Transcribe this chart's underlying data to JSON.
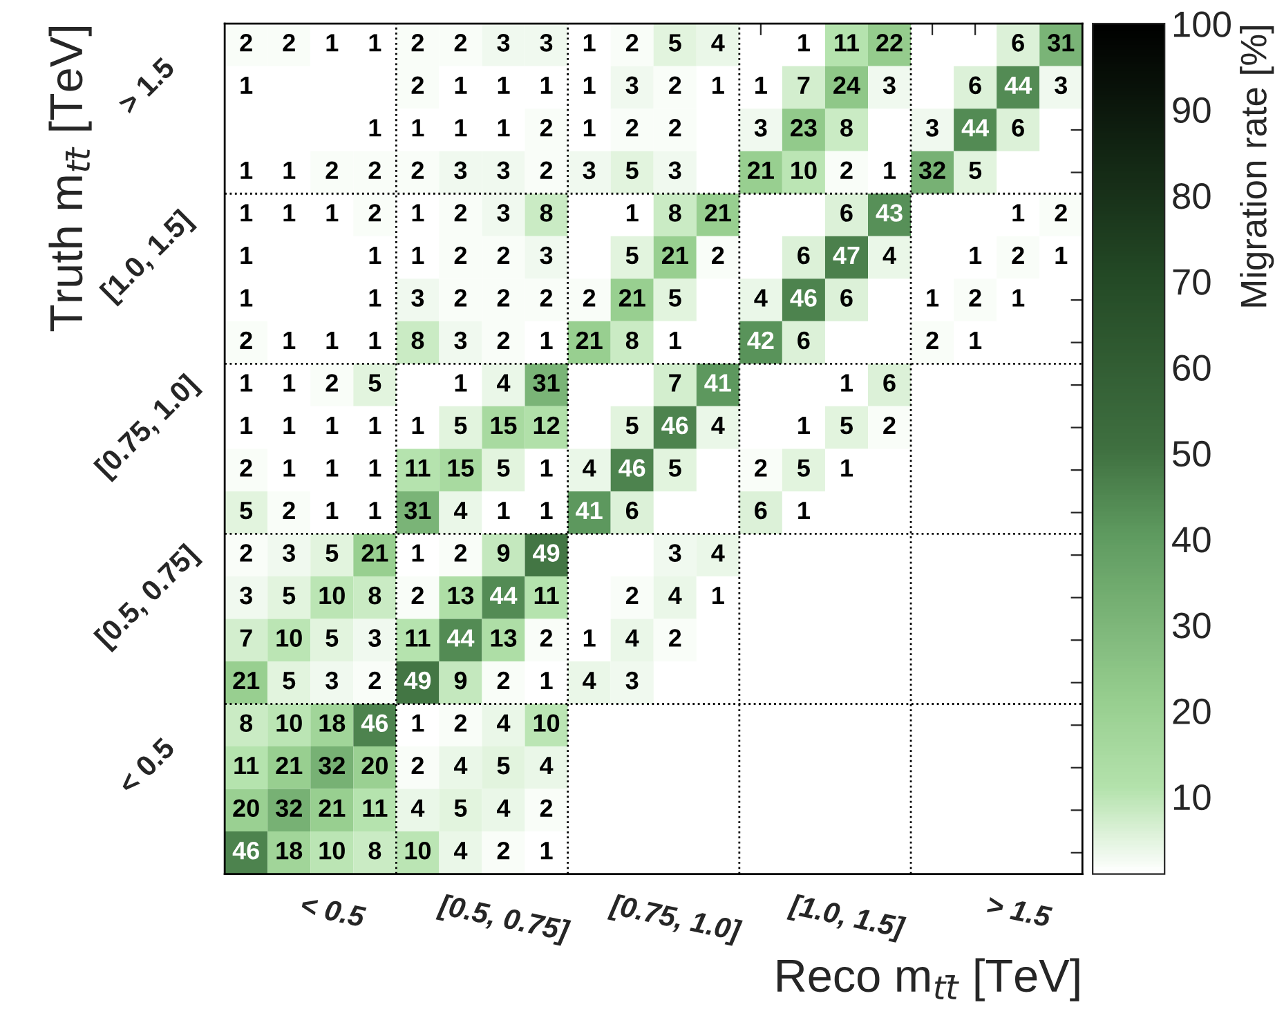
{
  "chart_data": {
    "type": "heatmap",
    "xlabel": "Reco m$_{tt̄}$ [TeV]",
    "ylabel": "Truth m$_{tt̄}$ [TeV]",
    "clabel": "Migration rate [%]",
    "categories": [
      null,
      null,
      "< 0.5",
      null,
      null,
      null,
      "[0.5, 0.75]",
      null,
      null,
      null,
      "[0.75, 1.0]",
      null,
      null,
      null,
      "[1.0, 1.5]",
      null,
      null,
      null,
      "> 1.5",
      null
    ],
    "y_categories": [
      null,
      "> 1.5",
      null,
      null,
      null,
      "[1.0, 1.5]",
      null,
      null,
      null,
      "[0.75, 1.0]",
      null,
      null,
      null,
      "[0.5, 0.75]",
      null,
      null,
      null,
      "< 0.5",
      null,
      null
    ],
    "cells": [
      [
        2,
        2,
        1,
        1,
        2,
        2,
        3,
        3,
        1,
        2,
        5,
        4,
        null,
        1,
        11,
        22,
        null,
        null,
        6,
        31
      ],
      [
        1,
        null,
        null,
        null,
        2,
        1,
        1,
        1,
        1,
        3,
        2,
        1,
        1,
        7,
        24,
        3,
        null,
        6,
        44,
        3
      ],
      [
        null,
        null,
        null,
        1,
        1,
        1,
        1,
        2,
        1,
        2,
        2,
        null,
        3,
        23,
        8,
        null,
        3,
        44,
        6,
        null
      ],
      [
        1,
        1,
        2,
        2,
        2,
        3,
        3,
        2,
        3,
        5,
        3,
        null,
        21,
        10,
        2,
        1,
        32,
        5,
        null,
        null
      ],
      [
        1,
        1,
        1,
        2,
        1,
        2,
        3,
        8,
        null,
        1,
        8,
        21,
        null,
        null,
        6,
        43,
        null,
        null,
        1,
        2
      ],
      [
        1,
        null,
        null,
        1,
        1,
        2,
        2,
        3,
        null,
        5,
        21,
        2,
        null,
        6,
        47,
        4,
        null,
        1,
        2,
        1
      ],
      [
        1,
        null,
        null,
        1,
        3,
        2,
        2,
        2,
        2,
        21,
        5,
        null,
        4,
        46,
        6,
        null,
        1,
        2,
        1,
        null
      ],
      [
        2,
        1,
        1,
        1,
        8,
        3,
        2,
        1,
        21,
        8,
        1,
        null,
        42,
        6,
        null,
        null,
        2,
        1,
        null,
        null
      ],
      [
        1,
        1,
        2,
        5,
        null,
        1,
        4,
        31,
        null,
        null,
        7,
        41,
        null,
        null,
        1,
        6,
        null,
        null,
        null,
        null
      ],
      [
        1,
        1,
        1,
        1,
        1,
        5,
        15,
        12,
        null,
        5,
        46,
        4,
        null,
        1,
        5,
        2,
        null,
        null,
        null,
        null
      ],
      [
        2,
        1,
        1,
        1,
        11,
        15,
        5,
        1,
        4,
        46,
        5,
        null,
        2,
        5,
        1,
        null,
        null,
        null,
        null,
        null
      ],
      [
        5,
        2,
        1,
        1,
        31,
        4,
        1,
        1,
        41,
        6,
        null,
        null,
        6,
        1,
        null,
        null,
        null,
        null,
        null,
        null
      ],
      [
        2,
        3,
        5,
        21,
        1,
        2,
        9,
        49,
        null,
        null,
        3,
        4,
        null,
        null,
        null,
        null,
        null,
        null,
        null,
        null
      ],
      [
        3,
        5,
        10,
        8,
        2,
        13,
        44,
        11,
        null,
        2,
        4,
        1,
        null,
        null,
        null,
        null,
        null,
        null,
        null,
        null
      ],
      [
        7,
        10,
        5,
        3,
        11,
        44,
        13,
        2,
        1,
        4,
        2,
        null,
        null,
        null,
        null,
        null,
        null,
        null,
        null,
        null
      ],
      [
        21,
        5,
        3,
        2,
        49,
        9,
        2,
        1,
        4,
        3,
        null,
        null,
        null,
        null,
        null,
        null,
        null,
        null,
        null,
        null
      ],
      [
        8,
        10,
        18,
        46,
        1,
        2,
        4,
        10,
        null,
        null,
        null,
        null,
        null,
        null,
        null,
        null,
        null,
        null,
        null,
        null
      ],
      [
        11,
        21,
        32,
        20,
        2,
        4,
        5,
        4,
        null,
        null,
        null,
        null,
        null,
        null,
        null,
        null,
        null,
        null,
        null,
        null
      ],
      [
        20,
        32,
        21,
        11,
        4,
        5,
        4,
        2,
        null,
        null,
        null,
        null,
        null,
        null,
        null,
        null,
        null,
        null,
        null,
        null
      ],
      [
        46,
        18,
        10,
        8,
        10,
        4,
        2,
        1,
        null,
        null,
        null,
        null,
        null,
        null,
        null,
        null,
        null,
        null,
        null,
        null
      ]
    ],
    "clim": [
      1,
      100
    ],
    "cticks": [
      10,
      20,
      30,
      40,
      50,
      60,
      70,
      80,
      90,
      100
    ],
    "data_labels": true
  }
}
